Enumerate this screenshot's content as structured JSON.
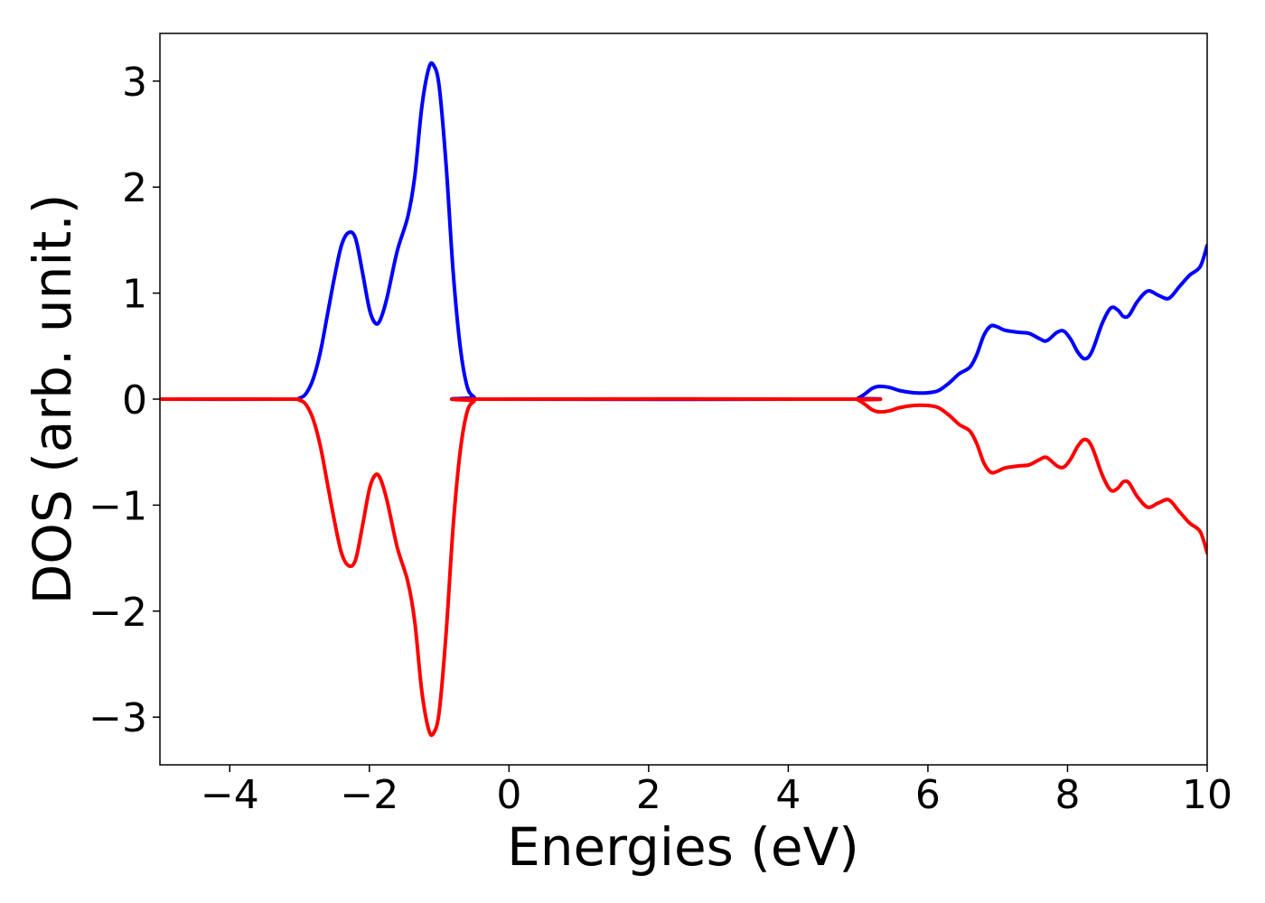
{
  "chart_data": {
    "type": "line",
    "title": "",
    "xlabel": "Energies (eV)",
    "ylabel": "DOS (arb. unit.)",
    "xlim": [
      -5,
      10
    ],
    "ylim": [
      -3.45,
      3.45
    ],
    "grid": false,
    "x_ticks": [
      -4,
      -2,
      0,
      2,
      4,
      6,
      8,
      10
    ],
    "x_tick_labels": [
      "−4",
      "−2",
      "0",
      "2",
      "4",
      "6",
      "8",
      "10"
    ],
    "y_ticks": [
      3,
      2,
      1,
      0,
      -1,
      -2,
      -3
    ],
    "y_tick_labels": [
      "3",
      "2",
      "1",
      "0",
      "−1",
      "−2",
      "−3"
    ],
    "series": [
      {
        "color": "#0000ff",
        "points": [
          [
            -5.0,
            0.0
          ],
          [
            -3.2,
            0.0
          ],
          [
            -3.0,
            0.01
          ],
          [
            -2.9,
            0.06
          ],
          [
            -2.8,
            0.2
          ],
          [
            -2.7,
            0.45
          ],
          [
            -2.6,
            0.8
          ],
          [
            -2.5,
            1.15
          ],
          [
            -2.4,
            1.45
          ],
          [
            -2.3,
            1.57
          ],
          [
            -2.2,
            1.52
          ],
          [
            -2.1,
            1.2
          ],
          [
            -2.0,
            0.85
          ],
          [
            -1.92,
            0.72
          ],
          [
            -1.85,
            0.74
          ],
          [
            -1.75,
            0.95
          ],
          [
            -1.6,
            1.4
          ],
          [
            -1.45,
            1.72
          ],
          [
            -1.35,
            2.1
          ],
          [
            -1.25,
            2.75
          ],
          [
            -1.15,
            3.12
          ],
          [
            -1.08,
            3.15
          ],
          [
            -1.0,
            2.95
          ],
          [
            -0.9,
            2.2
          ],
          [
            -0.8,
            1.2
          ],
          [
            -0.7,
            0.5
          ],
          [
            -0.6,
            0.12
          ],
          [
            -0.5,
            0.02
          ],
          [
            -0.4,
            0.0
          ],
          [
            4.9,
            0.0
          ],
          [
            5.0,
            0.01
          ],
          [
            5.1,
            0.05
          ],
          [
            5.2,
            0.1
          ],
          [
            5.3,
            0.12
          ],
          [
            5.45,
            0.11
          ],
          [
            5.6,
            0.08
          ],
          [
            5.8,
            0.06
          ],
          [
            6.0,
            0.06
          ],
          [
            6.15,
            0.08
          ],
          [
            6.3,
            0.15
          ],
          [
            6.45,
            0.24
          ],
          [
            6.6,
            0.3
          ],
          [
            6.7,
            0.42
          ],
          [
            6.8,
            0.6
          ],
          [
            6.9,
            0.69
          ],
          [
            7.0,
            0.68
          ],
          [
            7.1,
            0.65
          ],
          [
            7.3,
            0.63
          ],
          [
            7.45,
            0.62
          ],
          [
            7.6,
            0.57
          ],
          [
            7.7,
            0.55
          ],
          [
            7.85,
            0.63
          ],
          [
            7.95,
            0.64
          ],
          [
            8.05,
            0.56
          ],
          [
            8.15,
            0.44
          ],
          [
            8.25,
            0.38
          ],
          [
            8.35,
            0.45
          ],
          [
            8.5,
            0.72
          ],
          [
            8.62,
            0.86
          ],
          [
            8.72,
            0.84
          ],
          [
            8.8,
            0.78
          ],
          [
            8.88,
            0.79
          ],
          [
            9.0,
            0.92
          ],
          [
            9.15,
            1.02
          ],
          [
            9.3,
            0.98
          ],
          [
            9.45,
            0.95
          ],
          [
            9.6,
            1.06
          ],
          [
            9.75,
            1.17
          ],
          [
            9.9,
            1.25
          ],
          [
            10.0,
            1.45
          ]
        ]
      },
      {
        "color": "#ff0000",
        "points": [
          [
            -5.0,
            0.0
          ],
          [
            -3.2,
            0.0
          ],
          [
            -3.0,
            -0.01
          ],
          [
            -2.9,
            -0.06
          ],
          [
            -2.8,
            -0.2
          ],
          [
            -2.7,
            -0.45
          ],
          [
            -2.6,
            -0.8
          ],
          [
            -2.5,
            -1.15
          ],
          [
            -2.4,
            -1.45
          ],
          [
            -2.3,
            -1.57
          ],
          [
            -2.2,
            -1.52
          ],
          [
            -2.1,
            -1.2
          ],
          [
            -2.0,
            -0.85
          ],
          [
            -1.92,
            -0.72
          ],
          [
            -1.85,
            -0.74
          ],
          [
            -1.75,
            -0.95
          ],
          [
            -1.6,
            -1.4
          ],
          [
            -1.45,
            -1.72
          ],
          [
            -1.35,
            -2.1
          ],
          [
            -1.25,
            -2.75
          ],
          [
            -1.15,
            -3.12
          ],
          [
            -1.08,
            -3.15
          ],
          [
            -1.0,
            -2.95
          ],
          [
            -0.9,
            -2.2
          ],
          [
            -0.8,
            -1.2
          ],
          [
            -0.7,
            -0.5
          ],
          [
            -0.6,
            -0.12
          ],
          [
            -0.5,
            -0.02
          ],
          [
            -0.4,
            0.0
          ],
          [
            4.9,
            0.0
          ],
          [
            5.0,
            -0.01
          ],
          [
            5.1,
            -0.05
          ],
          [
            5.2,
            -0.1
          ],
          [
            5.3,
            -0.12
          ],
          [
            5.45,
            -0.11
          ],
          [
            5.6,
            -0.08
          ],
          [
            5.8,
            -0.06
          ],
          [
            6.0,
            -0.06
          ],
          [
            6.15,
            -0.08
          ],
          [
            6.3,
            -0.15
          ],
          [
            6.45,
            -0.24
          ],
          [
            6.6,
            -0.3
          ],
          [
            6.7,
            -0.42
          ],
          [
            6.8,
            -0.6
          ],
          [
            6.9,
            -0.69
          ],
          [
            7.0,
            -0.68
          ],
          [
            7.1,
            -0.65
          ],
          [
            7.3,
            -0.63
          ],
          [
            7.45,
            -0.62
          ],
          [
            7.6,
            -0.57
          ],
          [
            7.7,
            -0.55
          ],
          [
            7.85,
            -0.63
          ],
          [
            7.95,
            -0.64
          ],
          [
            8.05,
            -0.56
          ],
          [
            8.15,
            -0.44
          ],
          [
            8.25,
            -0.38
          ],
          [
            8.35,
            -0.45
          ],
          [
            8.5,
            -0.72
          ],
          [
            8.62,
            -0.86
          ],
          [
            8.72,
            -0.84
          ],
          [
            8.8,
            -0.78
          ],
          [
            8.88,
            -0.79
          ],
          [
            9.0,
            -0.92
          ],
          [
            9.15,
            -1.02
          ],
          [
            9.3,
            -0.98
          ],
          [
            9.45,
            -0.95
          ],
          [
            9.6,
            -1.06
          ],
          [
            9.75,
            -1.17
          ],
          [
            9.9,
            -1.25
          ],
          [
            10.0,
            -1.45
          ]
        ]
      }
    ]
  }
}
